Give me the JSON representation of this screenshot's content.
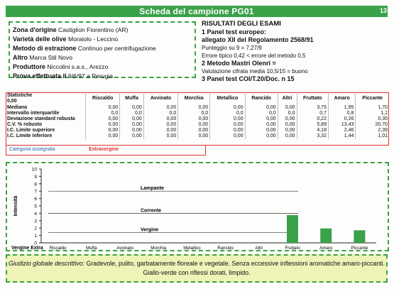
{
  "title": "Scheda del campione PG01",
  "page_num": "13",
  "info": [
    {
      "label": "Zona d'origine",
      "value": "Castiglion Fiorentino (AR)"
    },
    {
      "label": "Varietà delle olive",
      "value": "Moraiolo - Leccino"
    },
    {
      "label": "Metodo di estrazione",
      "value": "Continuo per centrifugazione"
    },
    {
      "label": "Altro",
      "value": "Marca Stil Novo"
    },
    {
      "label": "Produttore",
      "value": "Niccolini s.a.s., Arezzo"
    },
    {
      "label": "Prova effettuata il",
      "value": "9/6/97 a Perugia"
    }
  ],
  "results": {
    "heading": "RISULTATI DEGLI ESAMI",
    "panel1_title": "1 Panel test europeo:",
    "panel1_sub": "allegato XII del Regolamento 2568/91",
    "line_score": "Punteggio su 9 = 7,27/9",
    "line_error": "Errore tipico 0,42 < errore del metodo 0,5",
    "panel2_title": "2 Metodo Mastri Olenri =",
    "line_valuation": "Valutazione cifrata media 10,5/15 = buono",
    "panel3_title": "3 Panel test COI/T.20/Doc. n 15"
  },
  "table": {
    "corner_line1": "Statistiche",
    "corner_line2": "0,00",
    "columns": [
      "Riscaldo",
      "Muffa",
      "Avvinato",
      "Morchia",
      "Metallico",
      "Rancido",
      "Altri",
      "Fruttato",
      "Amaro",
      "Piccante"
    ],
    "rows": [
      {
        "label": "Mediana",
        "values": [
          "0,00",
          "0,00",
          "0,00",
          "0,00",
          "0,00",
          "0,00",
          "0,00",
          "3,75",
          "1,95",
          "1,70"
        ]
      },
      {
        "label": "Intervallo interquartile",
        "values": [
          "0,0",
          "0,0",
          "0,0",
          "0,0",
          "0,0",
          "0,0",
          "0,0",
          "0,7",
          "0,8",
          "1,1"
        ]
      },
      {
        "label": "Deviazione standard robusta",
        "values": [
          "0,00",
          "0,00",
          "0,00",
          "0,00",
          "0,00",
          "0,00",
          "0,00",
          "0,22",
          "0,26",
          "0,35"
        ]
      },
      {
        "label": "C.V. % robusto",
        "values": [
          "0,00",
          "0,00",
          "0,00",
          "0,00",
          "0,00",
          "0,00",
          "0,00",
          "5,89",
          "13,43",
          "20,70"
        ]
      },
      {
        "label": "I.C. Limite superiore",
        "values": [
          "0,00",
          "0,00",
          "0,00",
          "0,00",
          "0,00",
          "0,00",
          "0,00",
          "4,18",
          "2,46",
          "2,39"
        ]
      },
      {
        "label": "I.C. Limite inferiore",
        "values": [
          "0,00",
          "0,00",
          "0,00",
          "0,00",
          "0,00",
          "0,00",
          "0,00",
          "3,32",
          "1,44",
          "1,01"
        ]
      }
    ],
    "category_label": "Categoria assegnata",
    "category_value": "Extravergine"
  },
  "chart_data": {
    "type": "bar",
    "categories": [
      "Riscaldo",
      "Muffa",
      "Avvinato",
      "Morchia",
      "Metallico",
      "Rancido",
      "Altri",
      "Fruttato",
      "Amaro",
      "Piccante"
    ],
    "values": [
      0,
      0,
      0,
      0,
      0,
      0,
      0,
      3.75,
      1.95,
      1.7
    ],
    "ylabel": "Intensità",
    "ylim": [
      0,
      10
    ],
    "yticks": [
      "0",
      "1",
      "2",
      "3",
      "4",
      "5",
      "6",
      "7",
      "8",
      "9",
      "10"
    ],
    "bands": [
      {
        "label": "Lampante",
        "y": 7
      },
      {
        "label": "Corrente",
        "y": 4
      },
      {
        "label": "Vergine",
        "y": 1.4
      },
      {
        "label": "Vergine Extra",
        "y": 0
      }
    ],
    "bar_color": "#3aa248",
    "grid": false
  },
  "footer": {
    "label": "Giudizio globale descrittivo:",
    "line1": "Gradevole, pulito, garbatamente floreale e vegetale. Senza eccessive inflessioni aromatiche amaro-piccanti.",
    "line2": "Giallo-verde con riflessi dorati, limpido."
  }
}
